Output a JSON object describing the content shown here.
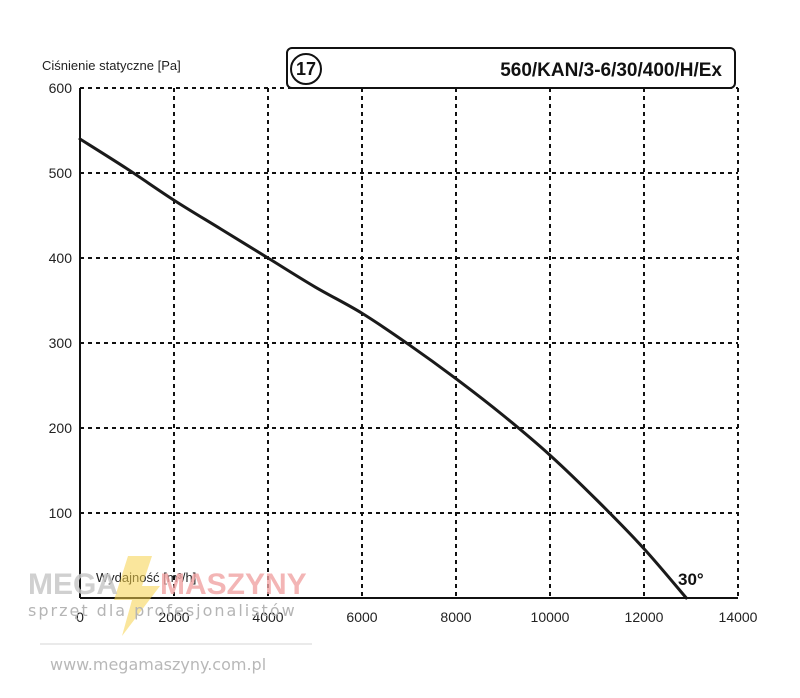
{
  "chart_data": {
    "type": "line",
    "title": "560/KAN/3-6/30/400/H/Ex",
    "badge": "17",
    "ylabel": "Ciśnienie statyczne [Pa]",
    "xlabel": "Wydajność [m³/h]",
    "xlim": [
      0,
      14000
    ],
    "ylim": [
      0,
      600
    ],
    "x_ticks": [
      "0",
      "2000",
      "4000",
      "6000",
      "8000",
      "10000",
      "12000",
      "14000"
    ],
    "y_ticks": [
      "100",
      "200",
      "300",
      "400",
      "500",
      "600"
    ],
    "grid": true,
    "grid_style": "dashed",
    "series": [
      {
        "name": "30°",
        "x": [
          0,
          1000,
          2000,
          3000,
          4000,
          5000,
          6000,
          7000,
          8000,
          9000,
          10000,
          11000,
          12000,
          12900
        ],
        "y": [
          540,
          505,
          468,
          434,
          400,
          366,
          335,
          298,
          258,
          215,
          168,
          115,
          58,
          0
        ],
        "color": "#1a1a1a"
      }
    ]
  },
  "watermark": {
    "mega": "MEGA",
    "maszyny": "MASZYNY",
    "tagline": "sprzęt dla profesjonalistów",
    "url": "www.megamaszyny.com.pl"
  },
  "colors": {
    "line": "#1a1a1a",
    "grid": "#111111",
    "watermark_grey": "#c8c8c8",
    "watermark_red": "#f1a3a3",
    "watermark_gold": "#f5d24a"
  }
}
